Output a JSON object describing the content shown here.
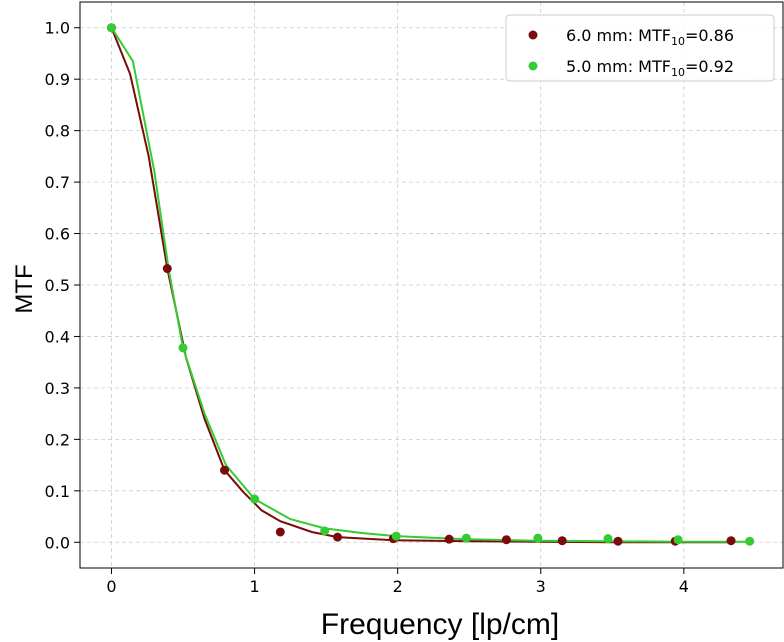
{
  "chart_data": {
    "type": "scatter",
    "title": "",
    "xlabel": "Frequency [lp/cm]",
    "ylabel": "MTF",
    "xlim": [
      -0.22,
      4.7
    ],
    "ylim": [
      -0.05,
      1.05
    ],
    "xticks": [
      0,
      1,
      2,
      3,
      4
    ],
    "yticks": [
      0.0,
      0.1,
      0.2,
      0.3,
      0.4,
      0.5,
      0.6,
      0.7,
      0.8,
      0.9,
      1.0
    ],
    "grid": true,
    "legend_position": "top-right",
    "series": [
      {
        "name": "6.0 mm: MTF10=0.86",
        "legend_prefix": "6.0 mm: MTF",
        "legend_sub": "10",
        "legend_suffix": "=0.86",
        "color": "#7b0b0b",
        "points": [
          [
            0,
            1.0
          ],
          [
            0.39,
            0.532
          ],
          [
            0.79,
            0.14
          ],
          [
            1.18,
            0.02
          ],
          [
            1.58,
            0.01
          ],
          [
            1.97,
            0.007
          ],
          [
            2.36,
            0.006
          ],
          [
            2.76,
            0.005
          ],
          [
            3.15,
            0.003
          ],
          [
            3.54,
            0.002
          ],
          [
            3.94,
            0.002
          ],
          [
            4.33,
            0.003
          ]
        ],
        "curve": [
          [
            0,
            1.0
          ],
          [
            0.13,
            0.91
          ],
          [
            0.26,
            0.75
          ],
          [
            0.39,
            0.532
          ],
          [
            0.52,
            0.36
          ],
          [
            0.65,
            0.24
          ],
          [
            0.79,
            0.14
          ],
          [
            0.92,
            0.098
          ],
          [
            1.05,
            0.062
          ],
          [
            1.18,
            0.041
          ],
          [
            1.4,
            0.02
          ],
          [
            1.58,
            0.01
          ],
          [
            1.97,
            0.004
          ],
          [
            2.5,
            0.002
          ],
          [
            3.0,
            0.001
          ],
          [
            3.5,
            0.0
          ],
          [
            4.0,
            0.0
          ],
          [
            4.33,
            0.0
          ]
        ]
      },
      {
        "name": "5.0 mm: MTF10=0.92",
        "legend_prefix": "5.0 mm: MTF",
        "legend_sub": "10",
        "legend_suffix": "=0.92",
        "color": "#33cc33",
        "points": [
          [
            0,
            1.0
          ],
          [
            0.5,
            0.378
          ],
          [
            1.0,
            0.084
          ],
          [
            1.49,
            0.022
          ],
          [
            1.99,
            0.012
          ],
          [
            2.48,
            0.008
          ],
          [
            2.98,
            0.008
          ],
          [
            3.47,
            0.007
          ],
          [
            3.96,
            0.005
          ],
          [
            4.46,
            0.002
          ]
        ],
        "curve": [
          [
            0,
            1.0
          ],
          [
            0.15,
            0.935
          ],
          [
            0.3,
            0.72
          ],
          [
            0.4,
            0.53
          ],
          [
            0.5,
            0.378
          ],
          [
            0.65,
            0.25
          ],
          [
            0.8,
            0.15
          ],
          [
            1.0,
            0.084
          ],
          [
            1.25,
            0.045
          ],
          [
            1.49,
            0.027
          ],
          [
            1.75,
            0.018
          ],
          [
            1.99,
            0.012
          ],
          [
            2.48,
            0.006
          ],
          [
            2.98,
            0.003
          ],
          [
            3.47,
            0.002
          ],
          [
            3.96,
            0.001
          ],
          [
            4.46,
            0.001
          ]
        ]
      }
    ]
  }
}
